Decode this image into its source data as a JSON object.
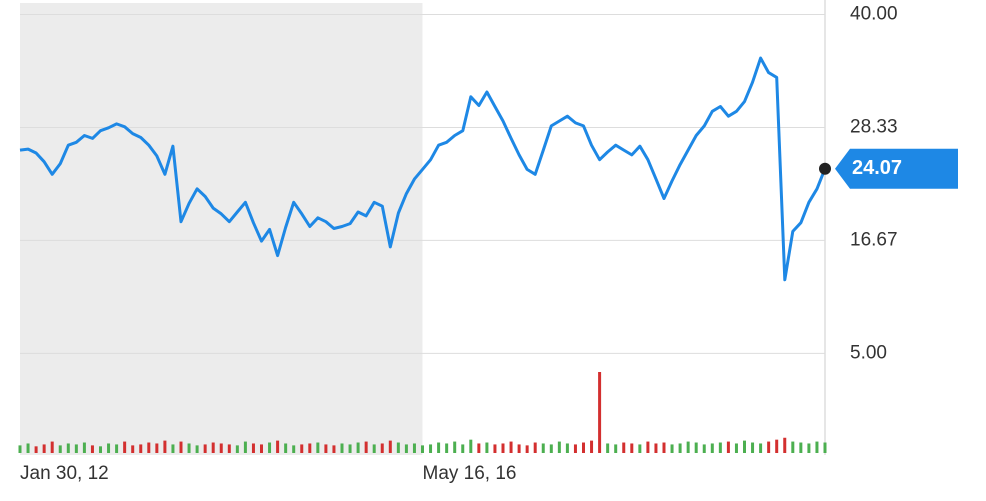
{
  "chart_data": {
    "type": "line",
    "categories": [
      "Jan 30, 12",
      null,
      null,
      null,
      null,
      null,
      null,
      null,
      null,
      null,
      null,
      null,
      null,
      null,
      null,
      null,
      null,
      null,
      null,
      null,
      null,
      null,
      null,
      null,
      null,
      null,
      null,
      null,
      null,
      null,
      null,
      null,
      null,
      null,
      null,
      null,
      null,
      null,
      null,
      null,
      null,
      null,
      null,
      null,
      null,
      null,
      null,
      null,
      null,
      null,
      "May 16, 16",
      null,
      null,
      null,
      null,
      null,
      null,
      null,
      null,
      null,
      null,
      null,
      null,
      null,
      null,
      null,
      null,
      null,
      null,
      null,
      null,
      null,
      null,
      null,
      null,
      null,
      null,
      null,
      null,
      null,
      null,
      null,
      null,
      null,
      null,
      null,
      null,
      null,
      null,
      null,
      null,
      null,
      null,
      null,
      null,
      null,
      null,
      null,
      null,
      null,
      null
    ],
    "series": [
      {
        "color": "#1e88e5",
        "values": [
          26.0,
          26.1,
          25.7,
          24.8,
          23.5,
          24.6,
          26.5,
          26.8,
          27.5,
          27.2,
          28.0,
          28.3,
          28.7,
          28.4,
          27.7,
          27.3,
          26.5,
          25.4,
          23.5,
          26.4,
          18.6,
          20.5,
          22.0,
          21.2,
          20.0,
          19.4,
          18.6,
          19.6,
          20.6,
          18.5,
          16.6,
          17.8,
          15.1,
          18.0,
          20.6,
          19.4,
          18.1,
          19.0,
          18.6,
          17.9,
          18.1,
          18.4,
          19.6,
          19.2,
          20.6,
          20.2,
          16.0,
          19.5,
          21.5,
          23.0,
          24.0,
          25.0,
          26.5,
          26.8,
          27.5,
          28.0,
          31.5,
          30.6,
          32.0,
          30.5,
          29.0,
          27.2,
          25.5,
          24.0,
          23.5,
          26.0,
          28.5,
          29.0,
          29.5,
          28.8,
          28.5,
          26.5,
          25.0,
          25.8,
          26.5,
          26.0,
          25.5,
          26.4,
          25.0,
          23.0,
          21.0,
          22.8,
          24.5,
          26.0,
          27.5,
          28.5,
          30.0,
          30.5,
          29.5,
          30.0,
          31.0,
          33.0,
          35.5,
          34.0,
          33.5,
          12.6,
          17.6,
          18.5,
          20.6,
          22.0,
          24.07
        ]
      }
    ],
    "volume": [
      8,
      10,
      7,
      9,
      12,
      8,
      10,
      9,
      11,
      8,
      7,
      10,
      9,
      12,
      8,
      9,
      11,
      10,
      13,
      9,
      12,
      10,
      8,
      9,
      11,
      10,
      9,
      8,
      12,
      10,
      9,
      11,
      13,
      10,
      8,
      9,
      10,
      11,
      9,
      8,
      10,
      9,
      11,
      12,
      9,
      10,
      13,
      11,
      9,
      10,
      8,
      9,
      11,
      10,
      12,
      9,
      14,
      10,
      11,
      9,
      10,
      12,
      9,
      8,
      11,
      10,
      9,
      12,
      10,
      9,
      11,
      13,
      85,
      10,
      9,
      11,
      10,
      9,
      12,
      10,
      11,
      9,
      10,
      12,
      11,
      9,
      10,
      11,
      12,
      10,
      13,
      11,
      10,
      12,
      14,
      16,
      12,
      11,
      10,
      12,
      11
    ],
    "ylim": [
      -5.5,
      41.5
    ],
    "yticks": [
      {
        "value": 5,
        "label": "5.00"
      },
      {
        "value": 16.67,
        "label": "16.67"
      },
      {
        "value": 28.33,
        "label": "28.33"
      },
      {
        "value": 40,
        "label": "40.00"
      }
    ],
    "grid": true
  }
}
